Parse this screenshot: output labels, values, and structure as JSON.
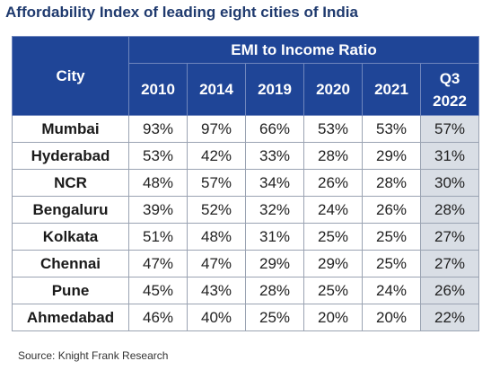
{
  "title": "Affordability Index of leading eight cities of India",
  "source": "Source: Knight Frank Research",
  "colors": {
    "header_bg": "#1f4597",
    "header_text": "#ffffff",
    "title_text": "#1f3a6e",
    "highlight_col_bg": "#d9dee5"
  },
  "chart_data": {
    "type": "table",
    "title": "Affordability Index of leading eight cities of India",
    "row_header_label": "City",
    "group_header_label": "EMI to Income Ratio",
    "columns": [
      "2010",
      "2014",
      "2019",
      "2020",
      "2021",
      "Q3 2022"
    ],
    "column_display": [
      [
        "2010"
      ],
      [
        "2014"
      ],
      [
        "2019"
      ],
      [
        "2020"
      ],
      [
        "2021"
      ],
      [
        "Q3",
        "2022"
      ]
    ],
    "rows": [
      {
        "city": "Mumbai",
        "values": [
          "93%",
          "97%",
          "66%",
          "53%",
          "53%",
          "57%"
        ]
      },
      {
        "city": "Hyderabad",
        "values": [
          "53%",
          "42%",
          "33%",
          "28%",
          "29%",
          "31%"
        ]
      },
      {
        "city": "NCR",
        "values": [
          "48%",
          "57%",
          "34%",
          "26%",
          "28%",
          "30%"
        ]
      },
      {
        "city": "Bengaluru",
        "values": [
          "39%",
          "52%",
          "32%",
          "24%",
          "26%",
          "28%"
        ]
      },
      {
        "city": "Kolkata",
        "values": [
          "51%",
          "48%",
          "31%",
          "25%",
          "25%",
          "27%"
        ]
      },
      {
        "city": "Chennai",
        "values": [
          "47%",
          "47%",
          "29%",
          "29%",
          "25%",
          "27%"
        ]
      },
      {
        "city": "Pune",
        "values": [
          "45%",
          "43%",
          "28%",
          "25%",
          "24%",
          "26%"
        ]
      },
      {
        "city": "Ahmedabad",
        "values": [
          "46%",
          "40%",
          "25%",
          "20%",
          "20%",
          "22%"
        ]
      }
    ],
    "highlighted_column": "Q3 2022"
  }
}
